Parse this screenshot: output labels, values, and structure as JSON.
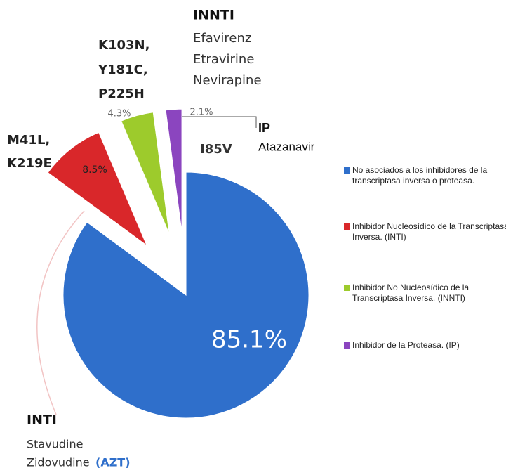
{
  "chart_data": {
    "type": "pie",
    "categories": [
      "No asociados a los inhibidores de la transcriptasa inversa o proteasa.",
      "Inhibidor Nucleosídico de la Transcriptasa Inversa. (INTI)",
      "Inhibidor No Nucleosídico de la Transcriptasa Inversa. (INNTI)",
      "Inhibidor de la Proteasa. (IP)"
    ],
    "values": [
      85.1,
      8.5,
      4.3,
      2.1
    ],
    "value_labels": [
      "85.1%",
      "8.5%",
      "4.3%",
      "2.1%"
    ],
    "colors": [
      "#2f6fcb",
      "#d9272a",
      "#9dcb2c",
      "#8b45bf"
    ],
    "annotations": [
      "INNTI",
      "Efavirenz",
      "Etravirine",
      "Nevirapine",
      "K103N,",
      "Y181C,",
      "P225H",
      "M41L,",
      "K219E",
      "IP",
      "Atazanavir",
      "I85V",
      "INTI",
      "Stavudine",
      "Zidovudine",
      "(AZT)"
    ]
  }
}
